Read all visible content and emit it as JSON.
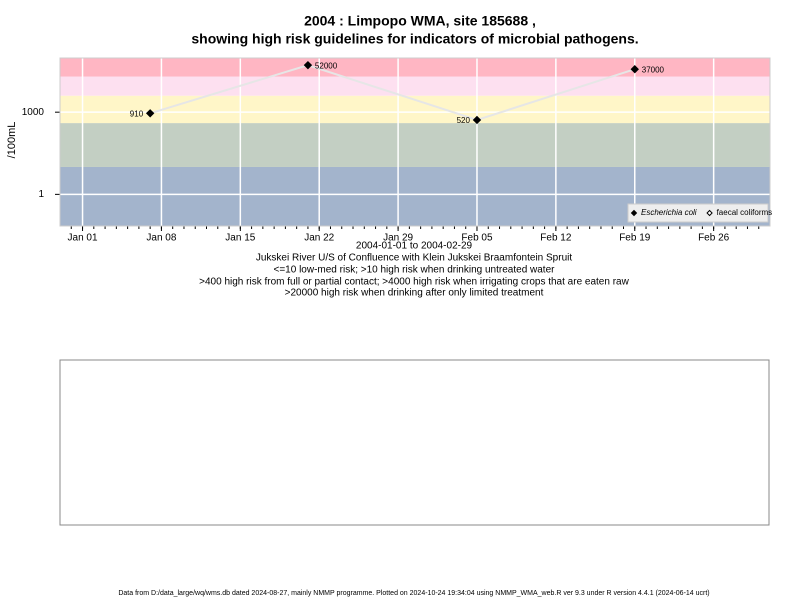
{
  "chart_data": {
    "type": "line",
    "title": "2004 : Limpopo WMA, site 185688 ,",
    "subtitle": "showing high risk guidelines for indicators of microbial pathogens.",
    "y_label": "/100mL",
    "x_label": "2004-01-01 to 2004-02-29",
    "captions": [
      "Jukskei River U/S of Confluence with Klein Jukskei Braamfontein Spruit",
      "<=10 low-med risk; >10 high risk when drinking untreated water",
      ">400 high risk from full or partial contact; >4000 high risk when irrigating crops that are eaten raw",
      ">20000 high risk when drinking after only limited treatment"
    ],
    "footer": "Data from D:/data_large/wq/wms.db dated 2024-08-27, mainly NMMP programme. Plotted on 2024-10-24 19:34:04 using NMMP_WMA_web.R ver 9.3 under R version 4.4.1 (2024-06-14 ucrt)",
    "x": [
      "2004-01-07",
      "2004-01-21",
      "2004-02-05",
      "2004-02-19"
    ],
    "series": [
      {
        "name": "Escherichia coli",
        "color": "#000000",
        "marker": "filled-diamond",
        "values": [
          910,
          52000,
          520,
          37000
        ],
        "value_labels": [
          "910",
          "52000",
          "520",
          "37000"
        ]
      },
      {
        "name": "faecal coliforms",
        "color": "#000000",
        "marker": "open-diamond",
        "values": [
          null,
          null,
          null,
          null
        ]
      }
    ],
    "line_color": "#e6e6e6",
    "xlim": [
      "2003-12-30",
      "2004-03-02"
    ],
    "xticks": [
      {
        "value": "2004-01-01",
        "label": "Jan 01"
      },
      {
        "value": "2004-01-08",
        "label": "Jan 08"
      },
      {
        "value": "2004-01-15",
        "label": "Jan 15"
      },
      {
        "value": "2004-01-22",
        "label": "Jan 22"
      },
      {
        "value": "2004-01-29",
        "label": "Jan 29"
      },
      {
        "value": "2004-02-05",
        "label": "Feb 05"
      },
      {
        "value": "2004-02-12",
        "label": "Feb 12"
      },
      {
        "value": "2004-02-19",
        "label": "Feb 19"
      },
      {
        "value": "2004-02-26",
        "label": "Feb 26"
      }
    ],
    "ylim": [
      0.07,
      95000
    ],
    "yticks": [
      1,
      1000
    ],
    "log_y": true,
    "grid": true,
    "legend": "bottom-right",
    "bands": [
      {
        "from": 0.07,
        "to": 10,
        "color": "#a3b4cc"
      },
      {
        "from": 10,
        "to": 400,
        "color": "#c3cfc3"
      },
      {
        "from": 400,
        "to": 4000,
        "color": "#fff6c8"
      },
      {
        "from": 4000,
        "to": 20000,
        "color": "#fde0f0"
      },
      {
        "from": 20000,
        "to": 95000,
        "color": "#ffb6c3"
      }
    ]
  }
}
